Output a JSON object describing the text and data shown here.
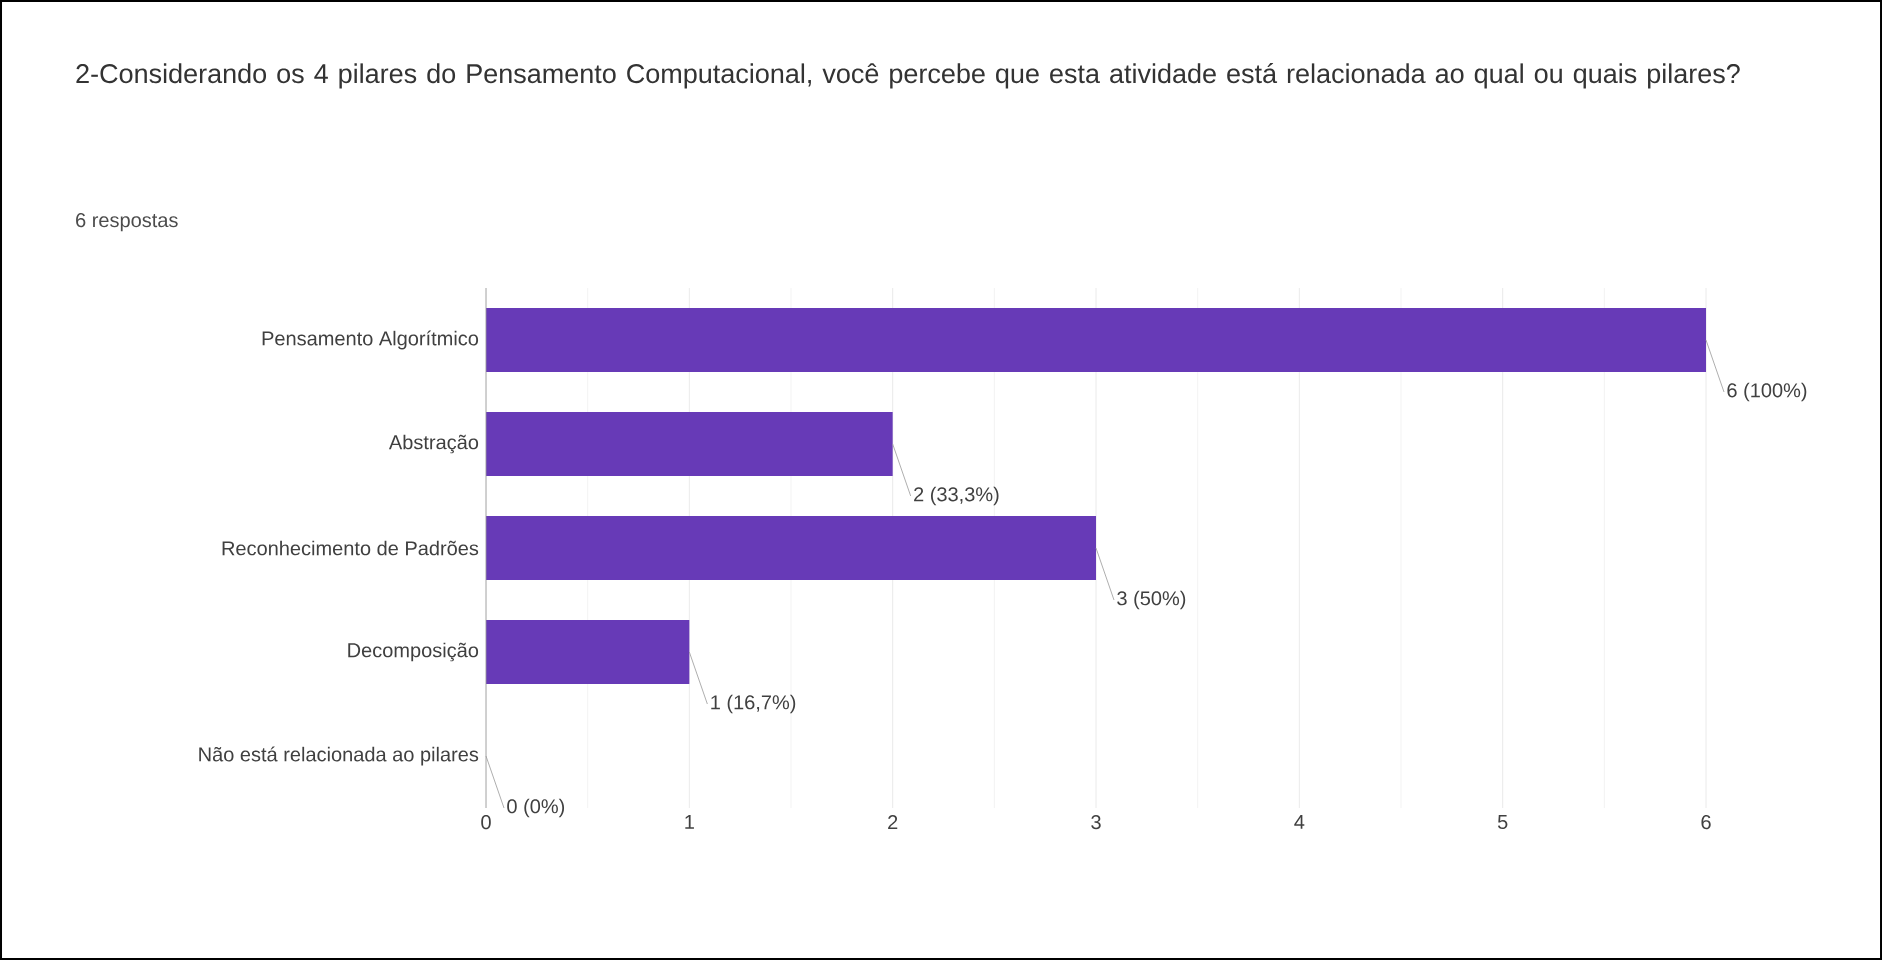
{
  "chart_data": {
    "type": "bar",
    "orientation": "horizontal",
    "title": "2-Considerando os 4 pilares do Pensamento Computacional, você percebe que esta atividade está relacionada ao qual ou quais pilares?",
    "subtitle": "6 respostas",
    "categories": [
      "Pensamento Algorítmico",
      "Abstração",
      "Reconhecimento de Padrões",
      "Decomposição",
      "Não está relacionada ao pilares"
    ],
    "values": [
      6,
      2,
      3,
      1,
      0
    ],
    "color": "#673ab7",
    "value_labels": [
      "6 (100%)",
      "2 (33,3%)",
      "3 (50%)",
      "1 (16,7%)",
      "0 (0%)"
    ],
    "xlim": [
      0,
      6
    ],
    "xticks": [
      0,
      1,
      2,
      3,
      4,
      5,
      6
    ],
    "grid": "x"
  }
}
